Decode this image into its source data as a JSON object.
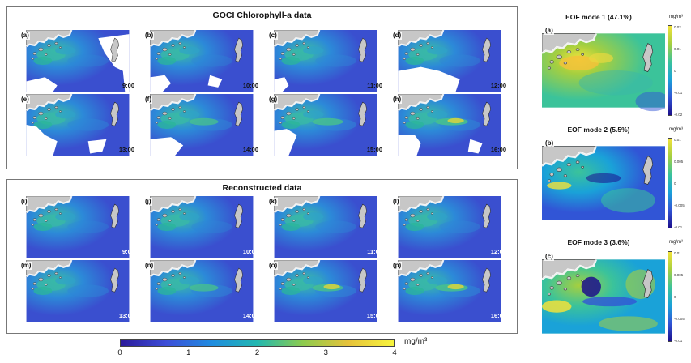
{
  "top_section": {
    "title": "GOCI Chlorophyll-a data"
  },
  "bottom_section": {
    "title": "Reconstructed data"
  },
  "colorbar": {
    "ticks": [
      "0",
      "1",
      "2",
      "3",
      "4"
    ],
    "unit": "mg/m³",
    "colors": [
      "#2b1a9a",
      "#3d4ed8",
      "#1f8ce0",
      "#22b8b0",
      "#8ccb4e",
      "#e6c23a",
      "#f7f43d"
    ]
  },
  "eof_unit": "mg/m³",
  "eof_colors": [
    "#1c0f8c",
    "#3155d6",
    "#1aa2d8",
    "#3bc39a",
    "#a6cf3f",
    "#f2e23a"
  ],
  "chart_data": [
    {
      "type": "heatmap",
      "title": "GOCI Chlorophyll-a data",
      "panels": [
        {
          "label": "(a)",
          "time": "9:00"
        },
        {
          "label": "(b)",
          "time": "10:00"
        },
        {
          "label": "(c)",
          "time": "11:00"
        },
        {
          "label": "(d)",
          "time": "12:00"
        },
        {
          "label": "(e)",
          "time": "13:00"
        },
        {
          "label": "(f)",
          "time": "14:00"
        },
        {
          "label": "(g)",
          "time": "15:00"
        },
        {
          "label": "(h)",
          "time": "16:00"
        }
      ],
      "colorbar_range": [
        0,
        4
      ],
      "colorbar_unit": "mg/m³"
    },
    {
      "type": "heatmap",
      "title": "Reconstructed data",
      "panels": [
        {
          "label": "(i)",
          "time": "9:00"
        },
        {
          "label": "(j)",
          "time": "10:00"
        },
        {
          "label": "(k)",
          "time": "11:00"
        },
        {
          "label": "(l)",
          "time": "12:00"
        },
        {
          "label": "(m)",
          "time": "13:00"
        },
        {
          "label": "(n)",
          "time": "14:00"
        },
        {
          "label": "(o)",
          "time": "15:00"
        },
        {
          "label": "(p)",
          "time": "16:00"
        }
      ],
      "colorbar_range": [
        0,
        4
      ],
      "colorbar_unit": "mg/m³"
    },
    {
      "type": "heatmap",
      "title": "EOF modes",
      "modes": [
        {
          "label": "(a)",
          "title": "EOF mode 1 (47.1%)",
          "variance_percent": 47.1,
          "unit": "mg/m³",
          "ticks": [
            "0.02",
            "0.01",
            "0",
            "-0.01",
            "-0.02"
          ]
        },
        {
          "label": "(b)",
          "title": "EOF mode 2 (5.5%)",
          "variance_percent": 5.5,
          "unit": "mg/m³",
          "ticks": [
            "0.01",
            "0.005",
            "0",
            "-0.005",
            "-0.01"
          ]
        },
        {
          "label": "(c)",
          "title": "EOF mode 3 (3.6%)",
          "variance_percent": 3.6,
          "unit": "mg/m³",
          "ticks": [
            "0.01",
            "0.005",
            "0",
            "-0.005",
            "-0.01"
          ]
        }
      ]
    }
  ]
}
